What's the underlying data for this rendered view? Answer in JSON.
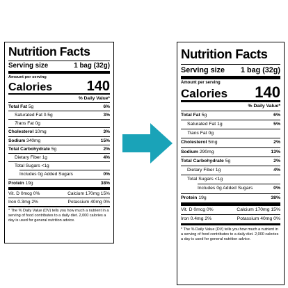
{
  "colors": {
    "arrow": "#1aa3b8"
  },
  "left": {
    "title": "Nutrition Facts",
    "serving_size_label": "Serving size",
    "serving_size_value": "1 bag (32g)",
    "amount_per_serving": "Amount per serving",
    "calories_label": "Calories",
    "calories_value": "140",
    "dv_header": "% Daily Value*",
    "rows": [
      {
        "label": "Total Fat",
        "amount": "5g",
        "dv": "6%"
      },
      {
        "label": "Saturated Fat",
        "amount": "0.5g",
        "dv": "3%"
      },
      {
        "label": "Trans",
        "amount": "Fat 0g",
        "dv": ""
      },
      {
        "label": "Cholesterol",
        "amount": "10mg",
        "dv": "3%"
      },
      {
        "label": "Sodium",
        "amount": "340mg",
        "dv": "15%"
      },
      {
        "label": "Total Carbohydrate",
        "amount": "5g",
        "dv": "2%"
      },
      {
        "label": "Dietary Fiber",
        "amount": "1g",
        "dv": "4%"
      },
      {
        "label": "Total Sugars",
        "amount": "<1g",
        "dv": ""
      },
      {
        "label": "Includes 0g Added Sugars",
        "amount": "",
        "dv": "0%"
      },
      {
        "label": "Protein",
        "amount": "19g",
        "dv": "38%"
      }
    ],
    "vitamins": [
      [
        "Vit. D 0mcg 0%",
        "Calcium 170mg 15%"
      ],
      [
        "Iron 0.3mg 2%",
        "Potassium 40mg 0%"
      ]
    ],
    "footnote": "* The % Daily Value (DV) tells you how much a nutrient in a serving of food contributes to a daily diet. 2,000 calories a day is used for general nutrition advice."
  },
  "right": {
    "title": "Nutrition Facts",
    "serving_size_label": "Serving size",
    "serving_size_value": "1 bag (32g)",
    "amount_per_serving": "Amount per serving",
    "calories_label": "Calories",
    "calories_value": "140",
    "dv_header": "% Daily Value*",
    "rows": [
      {
        "label": "Total Fat",
        "amount": "5g",
        "dv": "6%"
      },
      {
        "label": "Saturated Fat",
        "amount": "1g",
        "dv": "5%"
      },
      {
        "label": "Trans",
        "amount": "Fat 0g",
        "dv": ""
      },
      {
        "label": "Cholesterol",
        "amount": "5mg",
        "dv": "2%"
      },
      {
        "label": "Sodium",
        "amount": "290mg",
        "dv": "13%"
      },
      {
        "label": "Total Carbohydrate",
        "amount": "5g",
        "dv": "2%"
      },
      {
        "label": "Dietary Fiber",
        "amount": "1g",
        "dv": "4%"
      },
      {
        "label": "Total Sugars",
        "amount": "<1g",
        "dv": ""
      },
      {
        "label": "Includes 0g Added Sugars",
        "amount": "",
        "dv": "0%"
      },
      {
        "label": "Protein",
        "amount": "19g",
        "dv": "38%"
      }
    ],
    "vitamins": [
      [
        "Vit. D 0mcg 0%",
        "Calcium 170mg 15%"
      ],
      [
        "Iron 0.4mg 2%",
        "Potassium 40mg 0%"
      ]
    ],
    "footnote": "* The % Daily Value (DV) tells you how much a nutrient in a serving of food contributes to a daily diet. 2,000 calories a day is used for general nutrition advice."
  }
}
